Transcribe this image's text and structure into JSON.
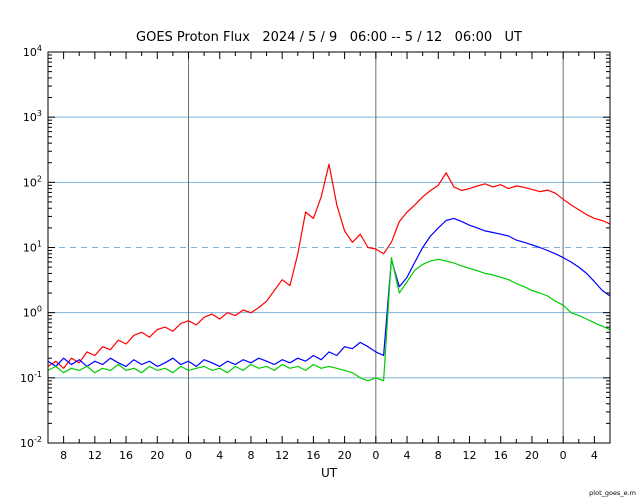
{
  "page": {
    "background": "#ffffff"
  },
  "watermark": "plot_goes_e.m",
  "chart_data": {
    "type": "line",
    "title": "GOES Proton Flux   2024 / 5 / 9   06:00 -- 5 / 12   06:00   UT",
    "xlabel": "UT",
    "ylabel": "",
    "x_range": [
      0,
      72
    ],
    "x_step_hours": 1,
    "y_exp_range": [
      -2,
      4
    ],
    "y_scale": "log10",
    "y_tick_exps": [
      4,
      3,
      2,
      1,
      0,
      -1,
      -2
    ],
    "x_tick_hours": [
      2,
      6,
      10,
      14,
      18,
      22,
      26,
      30,
      34,
      38,
      42,
      46,
      50,
      54,
      58,
      62,
      66,
      70
    ],
    "x_tick_labels": [
      "8",
      "12",
      "16",
      "20",
      "0",
      "4",
      "8",
      "12",
      "16",
      "20",
      "0",
      "4",
      "8",
      "12",
      "16",
      "20",
      "0",
      "4"
    ],
    "solid_gridline_exps": [
      3,
      2,
      0,
      -1
    ],
    "dashed_gridline_exps": [
      1
    ],
    "day_boundary_hours": [
      18,
      42,
      66
    ],
    "legend": "none",
    "grid": "horizontal-decades",
    "colors": {
      "grid": "#7fb2d9",
      "day_line": "#6e6e6e",
      "frame": "#000000",
      "red_series": "#ff0000",
      "blue_series": "#0000ff",
      "green_series": "#00cc00"
    },
    "series": [
      {
        "name": "red",
        "color": "#ff0000",
        "values": [
          0.15,
          0.18,
          0.14,
          0.2,
          0.17,
          0.25,
          0.22,
          0.3,
          0.27,
          0.38,
          0.33,
          0.45,
          0.5,
          0.42,
          0.55,
          0.6,
          0.52,
          0.68,
          0.75,
          0.65,
          0.85,
          0.95,
          0.8,
          1.0,
          0.9,
          1.1,
          1.0,
          1.2,
          1.5,
          2.2,
          3.2,
          2.6,
          8,
          35,
          28,
          60,
          190,
          45,
          18,
          12,
          16,
          10,
          9.5,
          8.0,
          12,
          25,
          35,
          45,
          60,
          75,
          90,
          140,
          85,
          75,
          80,
          88,
          95,
          85,
          92,
          80,
          88,
          84,
          78,
          72,
          76,
          68,
          55,
          45,
          38,
          32,
          28,
          26,
          23
        ]
      },
      {
        "name": "blue",
        "color": "#0000ff",
        "values": [
          0.18,
          0.15,
          0.2,
          0.16,
          0.19,
          0.15,
          0.18,
          0.16,
          0.2,
          0.17,
          0.15,
          0.19,
          0.16,
          0.18,
          0.15,
          0.17,
          0.2,
          0.16,
          0.18,
          0.15,
          0.19,
          0.17,
          0.15,
          0.18,
          0.16,
          0.19,
          0.17,
          0.2,
          0.18,
          0.16,
          0.19,
          0.17,
          0.2,
          0.18,
          0.22,
          0.19,
          0.25,
          0.22,
          0.3,
          0.28,
          0.35,
          0.3,
          0.25,
          0.22,
          6.5,
          2.5,
          3.5,
          6.0,
          10,
          15,
          20,
          26,
          28,
          25,
          22,
          20,
          18,
          17,
          16,
          15,
          13,
          12,
          11,
          10,
          9,
          8,
          7,
          6,
          5,
          4,
          3,
          2.2,
          1.8
        ]
      },
      {
        "name": "green",
        "color": "#00cc00",
        "values": [
          0.13,
          0.15,
          0.12,
          0.14,
          0.13,
          0.15,
          0.12,
          0.14,
          0.13,
          0.16,
          0.13,
          0.14,
          0.12,
          0.15,
          0.13,
          0.14,
          0.12,
          0.15,
          0.13,
          0.14,
          0.15,
          0.13,
          0.14,
          0.12,
          0.15,
          0.13,
          0.16,
          0.14,
          0.15,
          0.13,
          0.16,
          0.14,
          0.15,
          0.13,
          0.16,
          0.14,
          0.15,
          0.14,
          0.13,
          0.12,
          0.1,
          0.09,
          0.1,
          0.09,
          7.0,
          2.0,
          3.0,
          4.5,
          5.5,
          6.2,
          6.6,
          6.2,
          5.8,
          5.2,
          4.8,
          4.4,
          4.0,
          3.8,
          3.5,
          3.2,
          2.8,
          2.5,
          2.2,
          2.0,
          1.8,
          1.5,
          1.3,
          1.0,
          0.9,
          0.8,
          0.7,
          0.62,
          0.55
        ]
      }
    ]
  }
}
